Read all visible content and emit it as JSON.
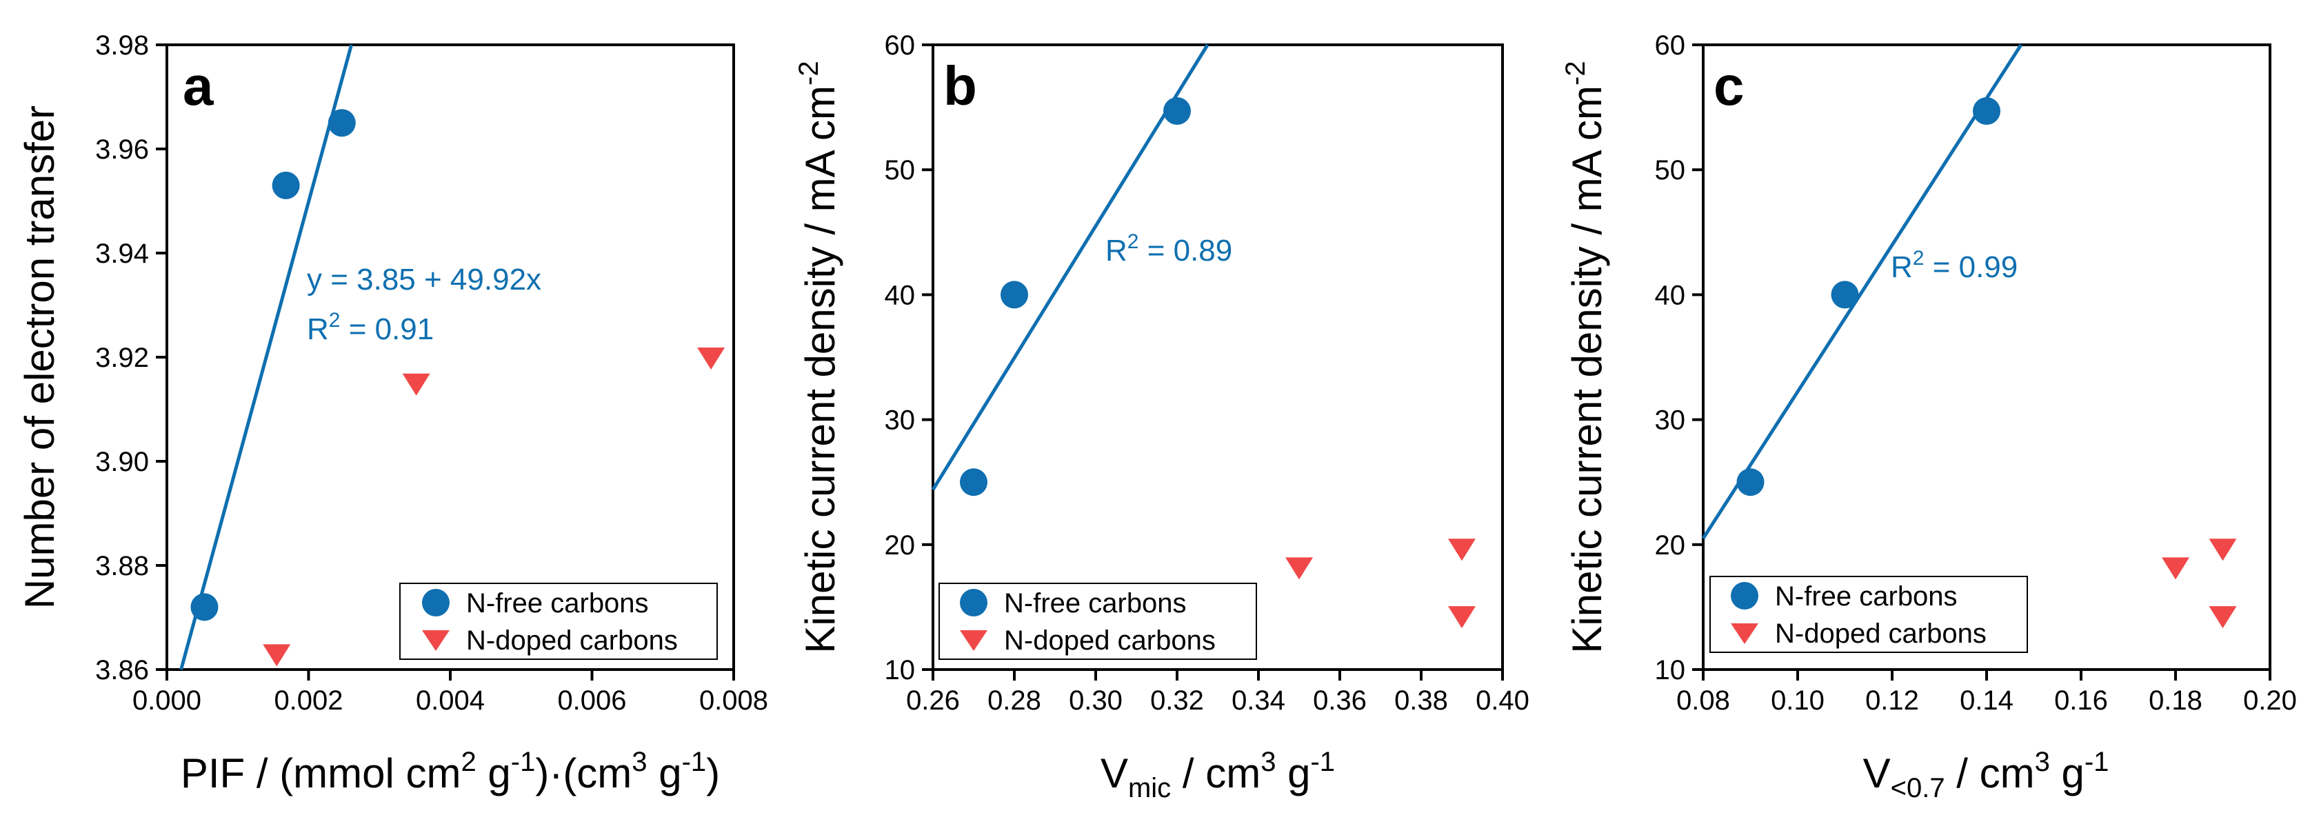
{
  "chart_data": [
    {
      "type": "scatter",
      "panel_label": "a",
      "xlabel": "PIF / (mmol cm² g⁻¹)·(cm³ g⁻¹)",
      "ylabel": "Number of electron transfer",
      "xlim": [
        0.0,
        0.008
      ],
      "ylim": [
        3.86,
        3.98
      ],
      "xticks": [
        0.0,
        0.002,
        0.004,
        0.006,
        0.008
      ],
      "xtick_labels": [
        "0.000",
        "0.002",
        "0.004",
        "0.006",
        "0.008"
      ],
      "yticks": [
        3.86,
        3.88,
        3.9,
        3.92,
        3.94,
        3.96,
        3.98
      ],
      "ytick_labels": [
        "3.86",
        "3.88",
        "3.90",
        "3.92",
        "3.94",
        "3.96",
        "3.98"
      ],
      "series": [
        {
          "name": "N-free carbons",
          "marker": "circle",
          "color": "#0f6fb0",
          "points": [
            [
              0.00053,
              3.872
            ],
            [
              0.00168,
              3.953
            ],
            [
              0.00247,
              3.965
            ]
          ]
        },
        {
          "name": "N-doped carbons",
          "marker": "triangle-down",
          "color": "#f04848",
          "points": [
            [
              0.00155,
              3.863
            ],
            [
              0.00352,
              3.915
            ],
            [
              0.00768,
              3.92
            ]
          ]
        }
      ],
      "fit": {
        "intercept": 3.85,
        "slope": 49.92
      },
      "annotations": [
        "y = 3.85 + 49.92x",
        "R² = 0.91"
      ],
      "legend": {
        "position": "bottom-right",
        "entries": [
          "N-free carbons",
          "N-doped carbons"
        ]
      }
    },
    {
      "type": "scatter",
      "panel_label": "b",
      "xlabel": "Vmic / cm³ g⁻¹",
      "ylabel": "Kinetic current density / mA cm⁻²",
      "xlim": [
        0.26,
        0.4
      ],
      "ylim": [
        10,
        60
      ],
      "xticks": [
        0.26,
        0.28,
        0.3,
        0.32,
        0.34,
        0.36,
        0.38,
        0.4
      ],
      "xtick_labels": [
        "0.26",
        "0.28",
        "0.30",
        "0.32",
        "0.34",
        "0.36",
        "0.38",
        "0.40"
      ],
      "yticks": [
        10,
        20,
        30,
        40,
        50,
        60
      ],
      "ytick_labels": [
        "10",
        "20",
        "30",
        "40",
        "50",
        "60"
      ],
      "series": [
        {
          "name": "N-free carbons",
          "marker": "circle",
          "color": "#0f6fb0",
          "points": [
            [
              0.27,
              25.0
            ],
            [
              0.28,
              40.0
            ],
            [
              0.32,
              54.7
            ]
          ]
        },
        {
          "name": "N-doped carbons",
          "marker": "triangle-down",
          "color": "#f04848",
          "points": [
            [
              0.35,
              18.2
            ],
            [
              0.39,
              19.7
            ],
            [
              0.39,
              14.3
            ]
          ]
        }
      ],
      "fit": {
        "x0": 0.26,
        "y0": 24.4,
        "x1": 0.3275,
        "y1": 60.0
      },
      "annotations": [
        "R² = 0.89"
      ],
      "legend": {
        "position": "bottom-left",
        "entries": [
          "N-free carbons",
          "N-doped carbons"
        ]
      }
    },
    {
      "type": "scatter",
      "panel_label": "c",
      "xlabel": "V<0.7 / cm³ g⁻¹",
      "ylabel": "Kinetic current density / mA cm⁻²",
      "xlim": [
        0.08,
        0.2
      ],
      "ylim": [
        10,
        60
      ],
      "xticks": [
        0.08,
        0.1,
        0.12,
        0.14,
        0.16,
        0.18,
        0.2
      ],
      "xtick_labels": [
        "0.08",
        "0.10",
        "0.12",
        "0.14",
        "0.16",
        "0.18",
        "0.20"
      ],
      "yticks": [
        10,
        20,
        30,
        40,
        50,
        60
      ],
      "ytick_labels": [
        "10",
        "20",
        "30",
        "40",
        "50",
        "60"
      ],
      "series": [
        {
          "name": "N-free carbons",
          "marker": "circle",
          "color": "#0f6fb0",
          "points": [
            [
              0.09,
              25.0
            ],
            [
              0.11,
              40.0
            ],
            [
              0.14,
              54.7
            ]
          ]
        },
        {
          "name": "N-doped carbons",
          "marker": "triangle-down",
          "color": "#f04848",
          "points": [
            [
              0.18,
              18.2
            ],
            [
              0.19,
              19.7
            ],
            [
              0.19,
              14.3
            ]
          ]
        }
      ],
      "fit": {
        "x0": 0.08,
        "y0": 20.5,
        "x1": 0.1473,
        "y1": 60.0
      },
      "annotations": [
        "R² = 0.99"
      ],
      "legend": {
        "position": "bottom-left",
        "entries": [
          "N-free carbons",
          "N-doped carbons"
        ]
      }
    }
  ]
}
